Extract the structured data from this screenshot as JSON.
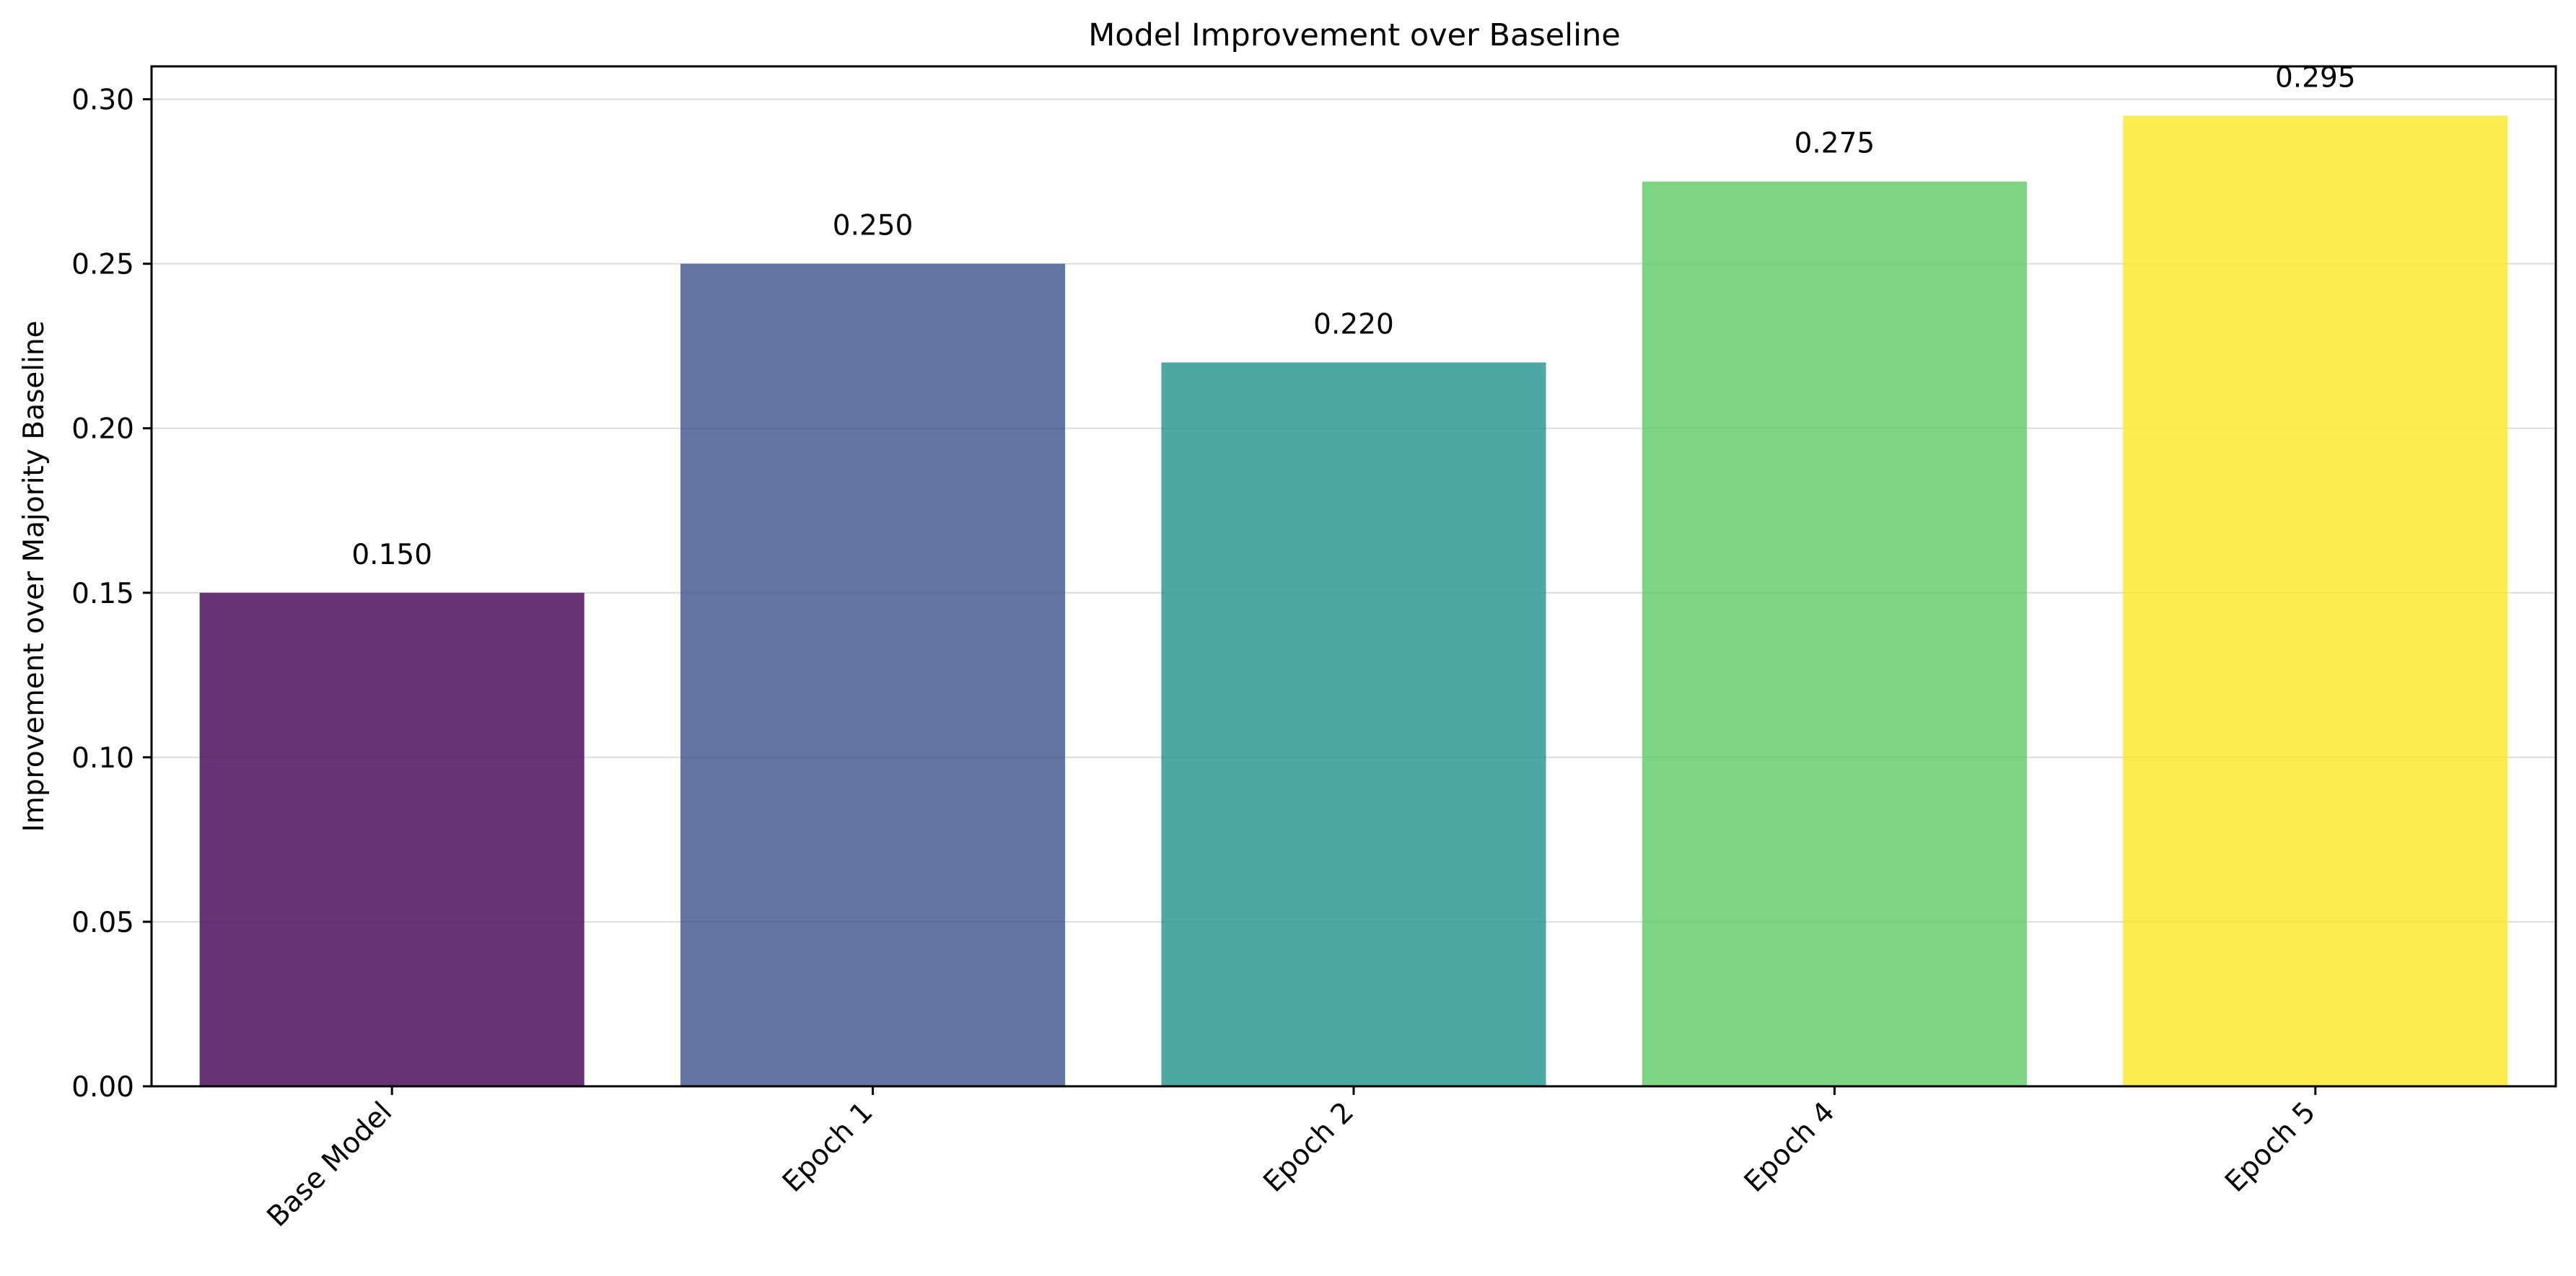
{
  "chart_data": {
    "type": "bar",
    "title": "Model Improvement over Baseline",
    "xlabel": "",
    "ylabel": "Improvement over Majority Baseline",
    "categories": [
      "Base Model",
      "Epoch 1",
      "Epoch 2",
      "Epoch 4",
      "Epoch 5"
    ],
    "values": [
      0.15,
      0.25,
      0.22,
      0.275,
      0.295
    ],
    "value_labels": [
      "0.150",
      "0.250",
      "0.220",
      "0.275",
      "0.295"
    ],
    "bar_colors": [
      "#440154",
      "#3b528b",
      "#21918c",
      "#5ec962",
      "#fde725"
    ],
    "bar_opacity": 0.8,
    "ylim": [
      0,
      0.31
    ],
    "yticks": [
      0.0,
      0.05,
      0.1,
      0.15,
      0.2,
      0.25,
      0.3
    ],
    "ytick_labels": [
      "0.00",
      "0.05",
      "0.10",
      "0.15",
      "0.20",
      "0.25",
      "0.30"
    ],
    "grid": "y",
    "legend": "none",
    "xtick_rotation": 45
  }
}
